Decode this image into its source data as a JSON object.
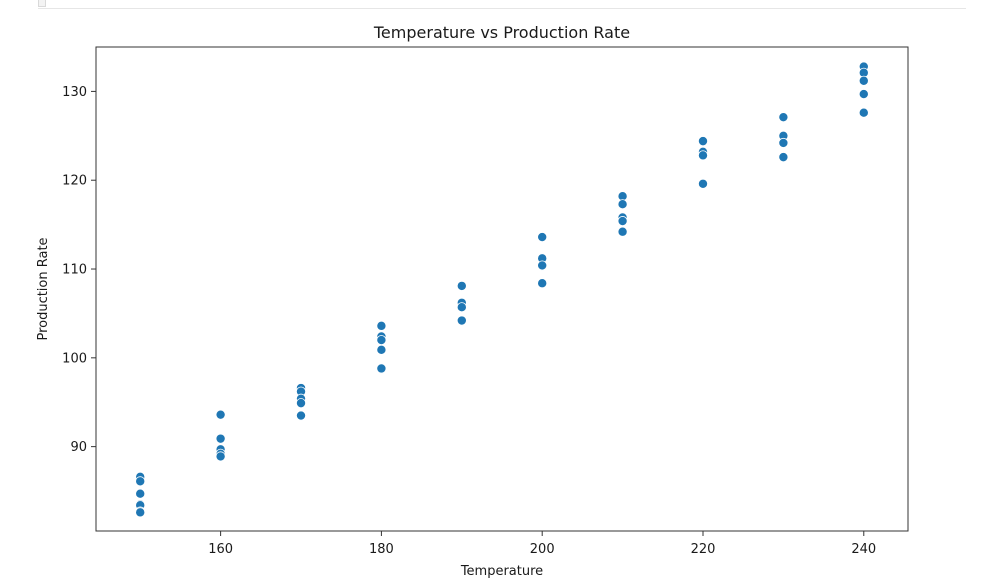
{
  "chart_data": {
    "type": "scatter",
    "title": "Temperature vs Production Rate",
    "xlabel": "Temperature",
    "ylabel": "Production Rate",
    "xlim": [
      144.5,
      245.5
    ],
    "ylim": [
      80.5,
      135
    ],
    "xticks": [
      160,
      180,
      200,
      220,
      240
    ],
    "yticks": [
      90,
      100,
      110,
      120,
      130
    ],
    "grid": false,
    "marker_color": "#1f77b4",
    "x": [
      150,
      150,
      150,
      150,
      150,
      150,
      150,
      160,
      160,
      160,
      160,
      160,
      170,
      170,
      170,
      170,
      170,
      180,
      180,
      180,
      180,
      180,
      190,
      190,
      190,
      190,
      200,
      200,
      200,
      200,
      210,
      210,
      210,
      210,
      210,
      220,
      220,
      220,
      220,
      230,
      230,
      230,
      230,
      240,
      240,
      240,
      240,
      240
    ],
    "y": [
      86.6,
      86.1,
      84.7,
      83.5,
      83.4,
      82.7,
      82.6,
      93.6,
      90.9,
      89.7,
      89.2,
      88.9,
      96.6,
      96.2,
      95.4,
      94.9,
      93.5,
      103.6,
      102.4,
      102.0,
      100.9,
      98.8,
      108.1,
      106.2,
      105.7,
      104.2,
      113.6,
      111.2,
      110.4,
      108.4,
      118.2,
      117.3,
      115.8,
      115.4,
      114.2,
      124.4,
      123.2,
      122.8,
      119.6,
      127.1,
      125.0,
      124.2,
      122.6,
      132.8,
      132.1,
      131.2,
      129.7,
      127.6
    ]
  }
}
